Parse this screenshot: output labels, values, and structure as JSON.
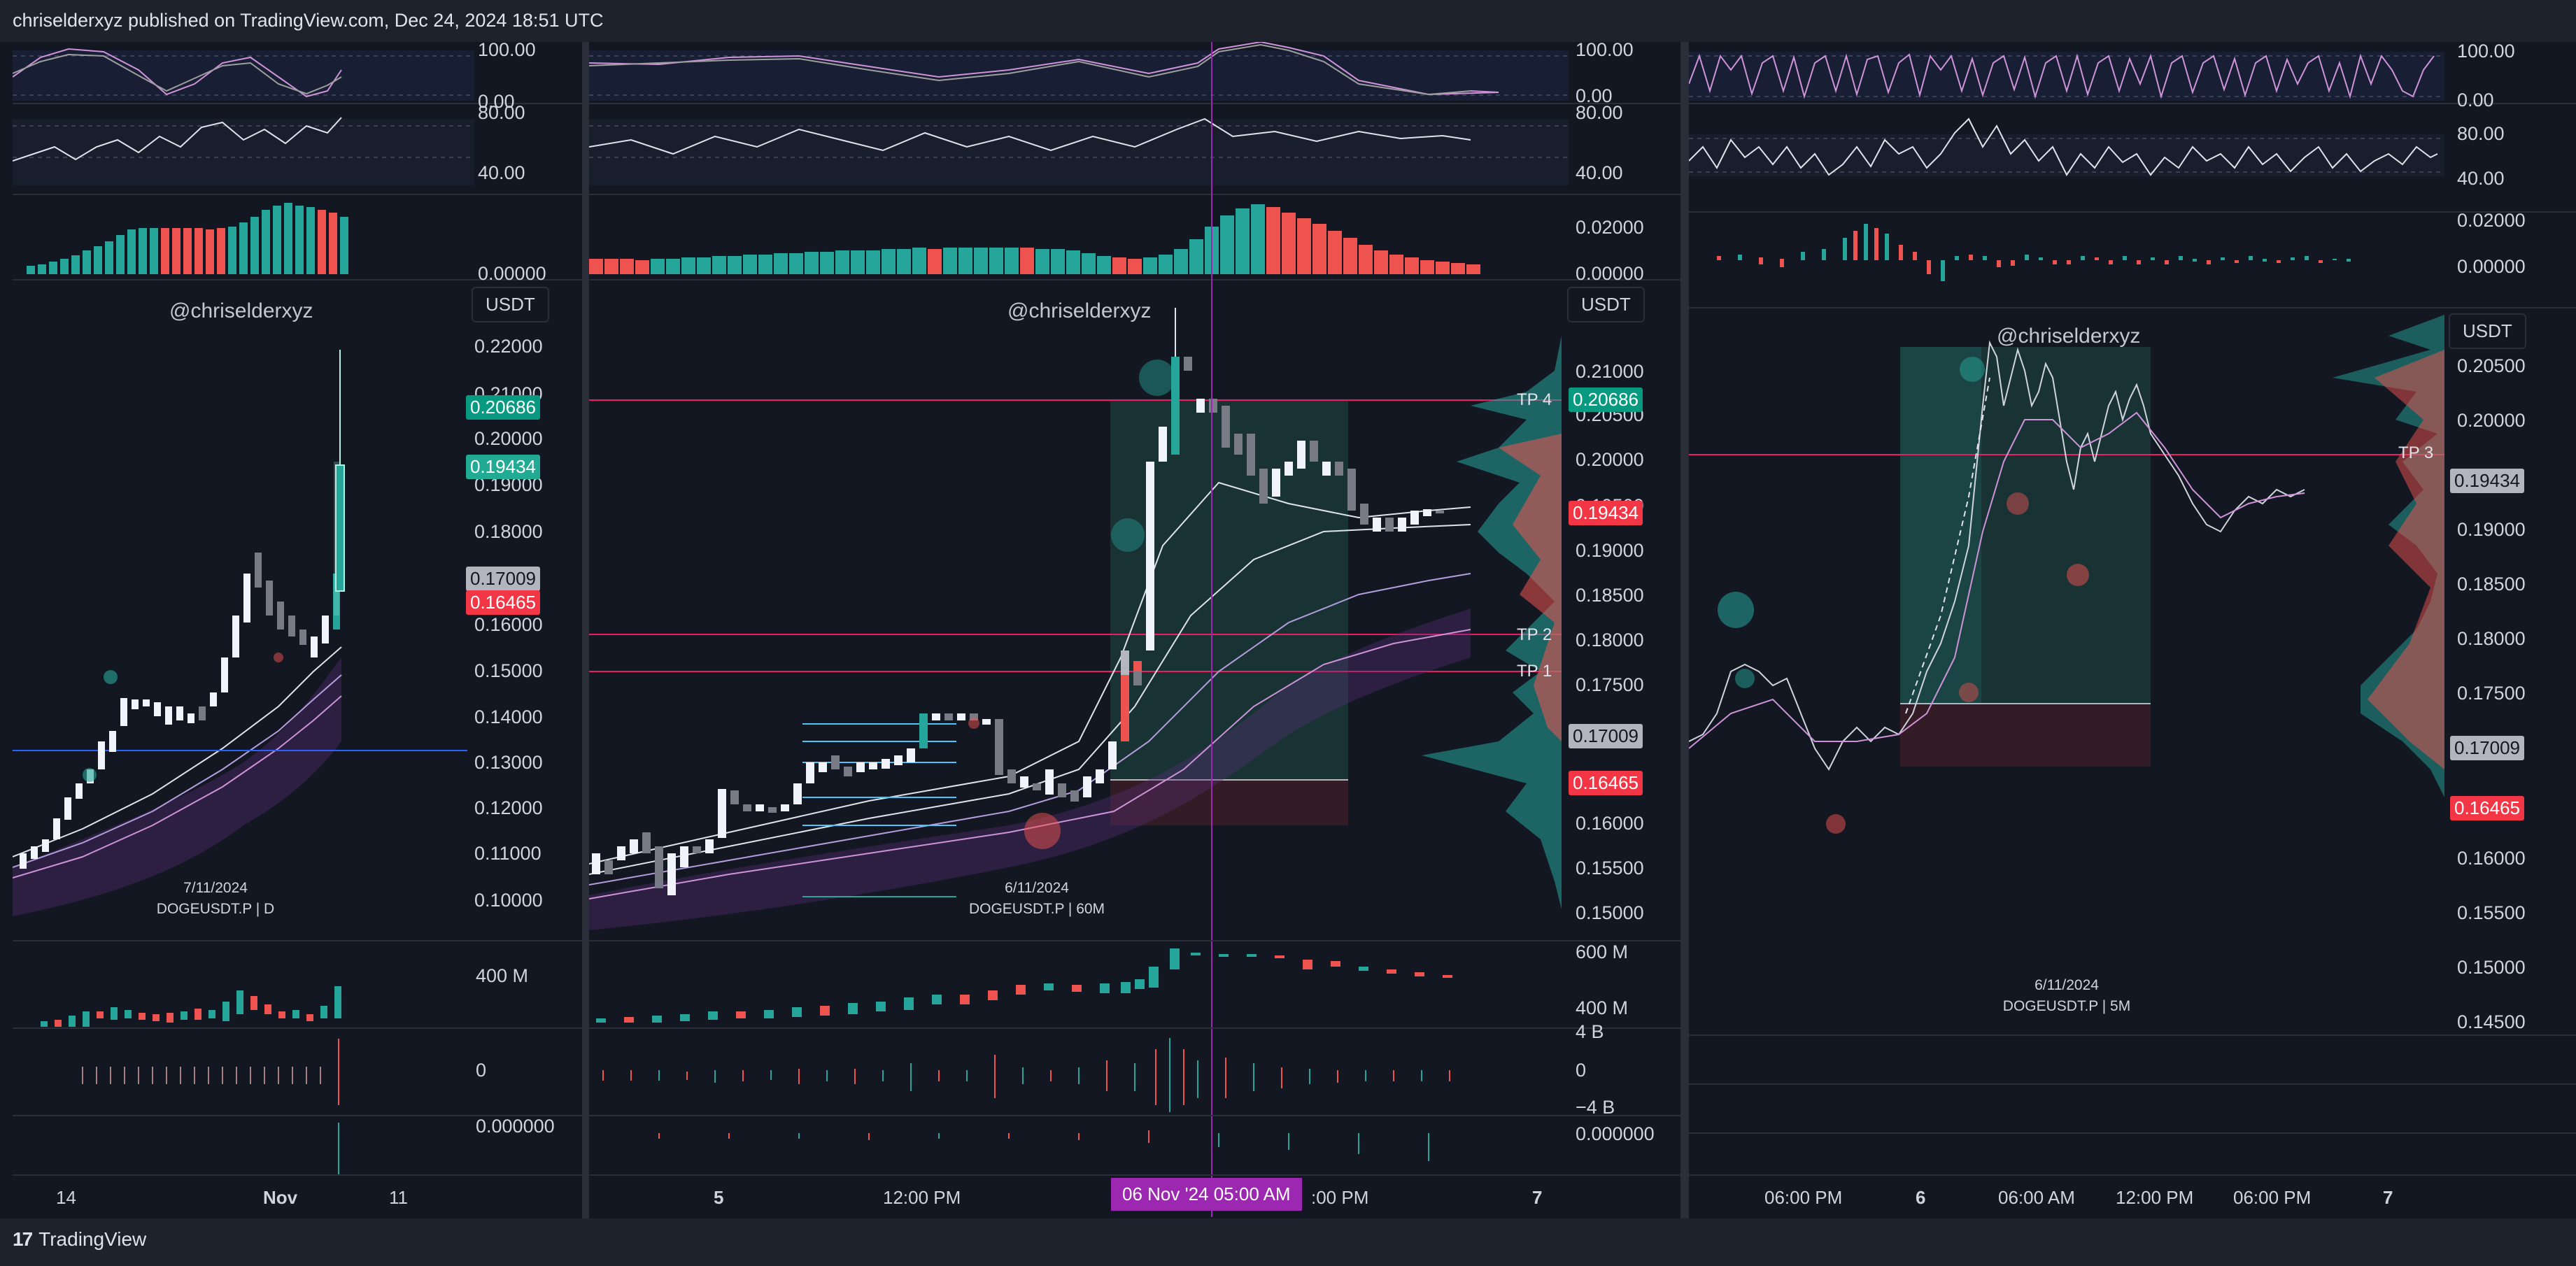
{
  "header": {
    "text": "chriselderxyz published on TradingView.com, Dec 24, 2024 18:51 UTC"
  },
  "footer": {
    "logo_mark": "17",
    "brand": "TradingView"
  },
  "panels": {
    "left": {
      "watermark": "@chriselderxyz",
      "currency": "USDT",
      "caption_date": "7/11/2024",
      "caption_symbol": "DOGEUSDT.P | D",
      "rsi_axis": [
        "100.00",
        "0.00"
      ],
      "stoch_axis": [
        "80.00",
        "40.00"
      ],
      "macd_axis": [
        "0.00000"
      ],
      "price_axis": [
        "0.22000",
        "0.21000",
        "0.20000",
        "0.19000",
        "0.18000",
        "0.16000",
        "0.15000",
        "0.14000",
        "0.13000",
        "0.12000",
        "0.11000",
        "0.10000"
      ],
      "price_tags": {
        "tp4": "0.20686",
        "last": "0.19434",
        "entry": "0.17009",
        "stop": "0.16465"
      },
      "volume_axis": [
        "400 M"
      ],
      "osc2_axis": [
        "0"
      ],
      "osc3_axis": [
        "0.000000"
      ],
      "time_labels": [
        "14",
        "Nov",
        "11"
      ]
    },
    "middle": {
      "watermark": "@chriselderxyz",
      "currency": "USDT",
      "caption_date": "6/11/2024",
      "caption_symbol": "DOGEUSDT.P | 60M",
      "rsi_axis": [
        "100.00",
        "0.00"
      ],
      "stoch_axis": [
        "80.00",
        "40.00"
      ],
      "macd_axis": [
        "0.02000",
        "0.00000"
      ],
      "price_axis": [
        "0.21000",
        "0.20500",
        "0.20000",
        "0.19500",
        "0.19000",
        "0.18500",
        "0.18000",
        "0.17500",
        "0.16000",
        "0.15500",
        "0.15000"
      ],
      "price_tags": {
        "tp4": "0.20686",
        "last": "0.19434",
        "entry": "0.17009",
        "stop": "0.16465"
      },
      "tp_labels": [
        "TP 4",
        "TP 2",
        "TP 1"
      ],
      "volume_axis": [
        "600 M",
        "400 M"
      ],
      "osc2_axis": [
        "4 B",
        "0",
        "−4 B"
      ],
      "osc3_axis": [
        "0.000000"
      ],
      "time_labels": [
        "5",
        "12:00 PM",
        ":00 PM",
        "7"
      ],
      "crosshair_time": "06 Nov '24   05:00 AM"
    },
    "right": {
      "watermark": "@chriselderxyz",
      "currency": "USDT",
      "caption_date": "6/11/2024",
      "caption_symbol": "DOGEUSDT.P | 5M",
      "rsi_axis": [
        "100.00",
        "0.00"
      ],
      "stoch_axis": [
        "80.00",
        "40.00"
      ],
      "macd_axis": [
        "0.02000",
        "0.00000"
      ],
      "price_axis": [
        "0.20500",
        "0.20000",
        "0.19000",
        "0.18500",
        "0.18000",
        "0.17500",
        "0.16000",
        "0.15500",
        "0.15000",
        "0.14500"
      ],
      "price_tags": {
        "last": "0.19434",
        "entry": "0.17009",
        "stop": "0.16465"
      },
      "tp_labels": [
        "TP 3"
      ],
      "time_labels": [
        "06:00 PM",
        "6",
        "06:00 AM",
        "12:00 PM",
        "06:00 PM",
        "7"
      ]
    }
  },
  "colors": {
    "background": "#131722",
    "up": "#26a69a",
    "down": "#ef5350",
    "tp_line": "#e91e63",
    "crosshair": "#9c27b0",
    "blue_level": "#2962ff"
  }
}
